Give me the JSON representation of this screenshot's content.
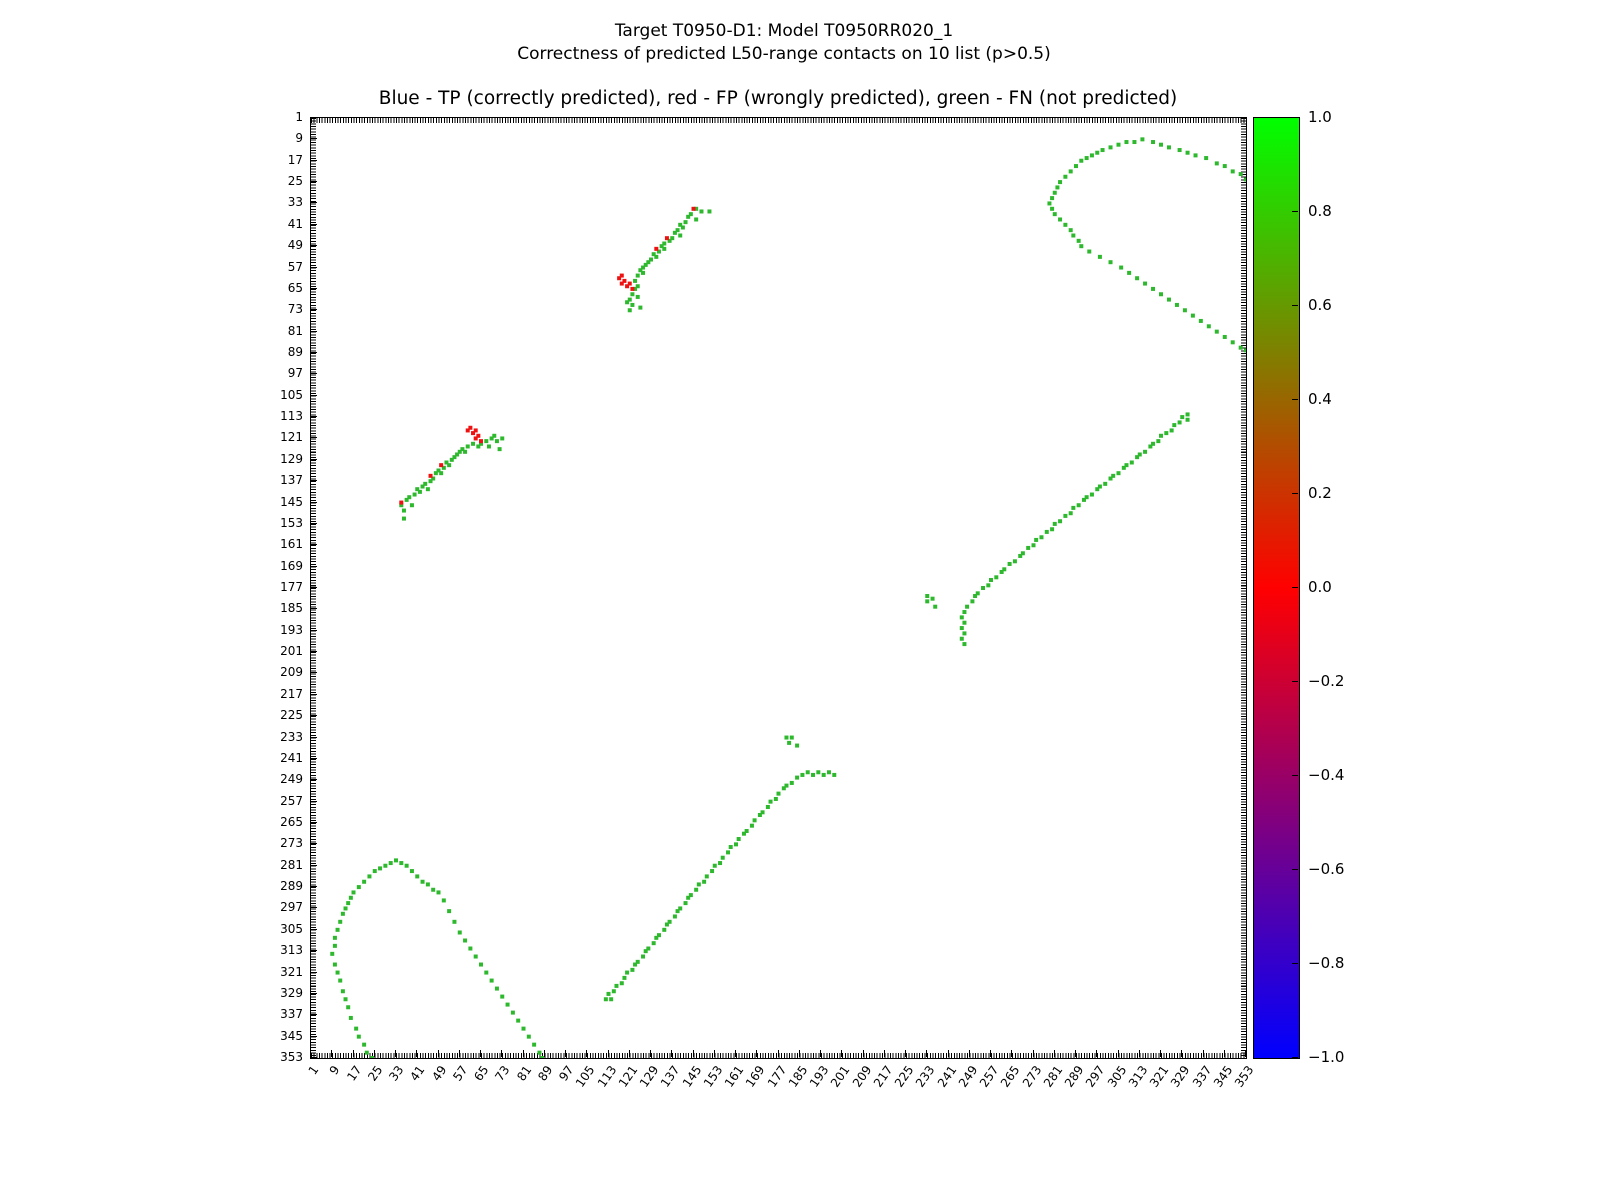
{
  "header": {
    "title_line1": "Target T0950-D1: Model T0950RR020_1",
    "title_line2": "Correctness of predicted L50-range contacts on 10 list (p>0.5)"
  },
  "chart_data": {
    "type": "scatter",
    "title": "Blue - TP (correctly predicted), red - FP (wrongly predicted), green - FN (not predicted)",
    "description": "Symmetric protein residue-residue contact map; each contact pair (i,j) is plotted at (j,i) and (i,j). Green squares = FN (not predicted), red squares = FP (wrongly predicted), blue = TP (none visible).",
    "axis": {
      "min": 1,
      "max": 353,
      "tick_step": 8,
      "tick_labels": [
        1,
        9,
        17,
        25,
        33,
        41,
        49,
        57,
        65,
        73,
        81,
        89,
        97,
        105,
        113,
        121,
        129,
        137,
        145,
        153,
        161,
        169,
        177,
        185,
        193,
        201,
        209,
        217,
        225,
        233,
        241,
        249,
        257,
        265,
        273,
        281,
        289,
        297,
        305,
        313,
        321,
        329,
        337,
        345,
        353
      ]
    },
    "colorbar": {
      "tick_labels": [
        "1.0",
        "0.8",
        "0.6",
        "0.4",
        "0.2",
        "0.0",
        "−0.2",
        "−0.4",
        "−0.6",
        "−0.8",
        "−1.0"
      ],
      "top_color": "#00ff00",
      "mid_color": "#ff0000",
      "bottom_color": "#0000ff",
      "range": [
        -1.0,
        1.0
      ]
    },
    "marker_colors": {
      "TP": "#0000ff",
      "FP": "#ee1111",
      "FN": "#2eb82e"
    },
    "marker_size": 4,
    "symmetric": true,
    "contacts": {
      "TP": [],
      "FP": [
        [
          35,
          145
        ],
        [
          46,
          135
        ],
        [
          50,
          131
        ],
        [
          60,
          118
        ],
        [
          61,
          117
        ],
        [
          62,
          119
        ],
        [
          63,
          118
        ],
        [
          63,
          121
        ],
        [
          64,
          120
        ],
        [
          65,
          122
        ]
      ],
      "FN": [
        [
          35,
          146
        ],
        [
          36,
          148
        ],
        [
          36,
          151
        ],
        [
          37,
          144
        ],
        [
          38,
          143
        ],
        [
          39,
          146
        ],
        [
          40,
          142
        ],
        [
          41,
          140
        ],
        [
          42,
          141
        ],
        [
          43,
          139
        ],
        [
          44,
          138
        ],
        [
          45,
          140
        ],
        [
          46,
          137
        ],
        [
          47,
          136
        ],
        [
          48,
          134
        ],
        [
          49,
          133
        ],
        [
          50,
          134
        ],
        [
          51,
          132
        ],
        [
          52,
          130
        ],
        [
          53,
          131
        ],
        [
          54,
          129
        ],
        [
          55,
          128
        ],
        [
          56,
          127
        ],
        [
          57,
          126
        ],
        [
          58,
          125
        ],
        [
          59,
          126
        ],
        [
          60,
          124
        ],
        [
          62,
          123
        ],
        [
          64,
          124
        ],
        [
          65,
          123
        ],
        [
          67,
          122
        ],
        [
          68,
          124
        ],
        [
          69,
          121
        ],
        [
          70,
          120
        ],
        [
          71,
          122
        ],
        [
          72,
          125
        ],
        [
          73,
          121
        ],
        [
          9,
          314
        ],
        [
          10,
          311
        ],
        [
          10,
          308
        ],
        [
          11,
          305
        ],
        [
          12,
          302
        ],
        [
          13,
          299
        ],
        [
          14,
          297
        ],
        [
          15,
          295
        ],
        [
          16,
          293
        ],
        [
          17,
          291
        ],
        [
          19,
          289
        ],
        [
          21,
          287
        ],
        [
          23,
          285
        ],
        [
          25,
          283
        ],
        [
          27,
          282
        ],
        [
          29,
          281
        ],
        [
          31,
          280
        ],
        [
          33,
          279
        ],
        [
          35,
          280
        ],
        [
          37,
          281
        ],
        [
          39,
          283
        ],
        [
          41,
          285
        ],
        [
          43,
          287
        ],
        [
          45,
          288
        ],
        [
          47,
          290
        ],
        [
          49,
          291
        ],
        [
          10,
          318
        ],
        [
          11,
          321
        ],
        [
          12,
          324
        ],
        [
          13,
          328
        ],
        [
          14,
          331
        ],
        [
          15,
          334
        ],
        [
          16,
          338
        ],
        [
          18,
          342
        ],
        [
          19,
          345
        ],
        [
          21,
          348
        ],
        [
          22,
          351
        ],
        [
          24,
          353
        ],
        [
          51,
          294
        ],
        [
          53,
          298
        ],
        [
          55,
          302
        ],
        [
          57,
          306
        ],
        [
          59,
          309
        ],
        [
          61,
          312
        ],
        [
          63,
          315
        ],
        [
          65,
          318
        ],
        [
          67,
          321
        ],
        [
          69,
          324
        ],
        [
          71,
          327
        ],
        [
          73,
          330
        ],
        [
          75,
          333
        ],
        [
          77,
          336
        ],
        [
          79,
          339
        ],
        [
          81,
          342
        ],
        [
          83,
          345
        ],
        [
          85,
          348
        ],
        [
          87,
          351
        ],
        [
          88,
          353
        ],
        [
          112,
          331
        ],
        [
          113,
          329
        ],
        [
          114,
          331
        ],
        [
          115,
          328
        ],
        [
          116,
          326
        ],
        [
          118,
          325
        ],
        [
          119,
          323
        ],
        [
          120,
          321
        ],
        [
          122,
          320
        ],
        [
          123,
          318
        ],
        [
          124,
          317
        ],
        [
          126,
          315
        ],
        [
          127,
          313
        ],
        [
          128,
          312
        ],
        [
          130,
          310
        ],
        [
          131,
          308
        ],
        [
          132,
          307
        ],
        [
          134,
          305
        ],
        [
          135,
          303
        ],
        [
          136,
          302
        ],
        [
          138,
          300
        ],
        [
          139,
          298
        ],
        [
          140,
          297
        ],
        [
          142,
          295
        ],
        [
          143,
          293
        ],
        [
          144,
          292
        ],
        [
          146,
          290
        ],
        [
          147,
          288
        ],
        [
          149,
          287
        ],
        [
          150,
          285
        ],
        [
          152,
          283
        ],
        [
          153,
          281
        ],
        [
          155,
          280
        ],
        [
          156,
          278
        ],
        [
          158,
          276
        ],
        [
          159,
          274
        ],
        [
          161,
          273
        ],
        [
          162,
          271
        ],
        [
          164,
          269
        ],
        [
          165,
          268
        ],
        [
          167,
          266
        ],
        [
          168,
          264
        ],
        [
          170,
          262
        ],
        [
          171,
          261
        ],
        [
          173,
          259
        ],
        [
          174,
          257
        ],
        [
          176,
          256
        ],
        [
          177,
          254
        ],
        [
          179,
          252
        ],
        [
          180,
          251
        ],
        [
          182,
          250
        ],
        [
          184,
          248
        ],
        [
          186,
          247
        ],
        [
          188,
          246
        ],
        [
          190,
          247
        ],
        [
          192,
          246
        ],
        [
          194,
          247
        ],
        [
          196,
          246
        ],
        [
          198,
          247
        ],
        [
          180,
          233
        ],
        [
          181,
          235
        ],
        [
          182,
          233
        ],
        [
          184,
          236
        ]
      ]
    }
  }
}
